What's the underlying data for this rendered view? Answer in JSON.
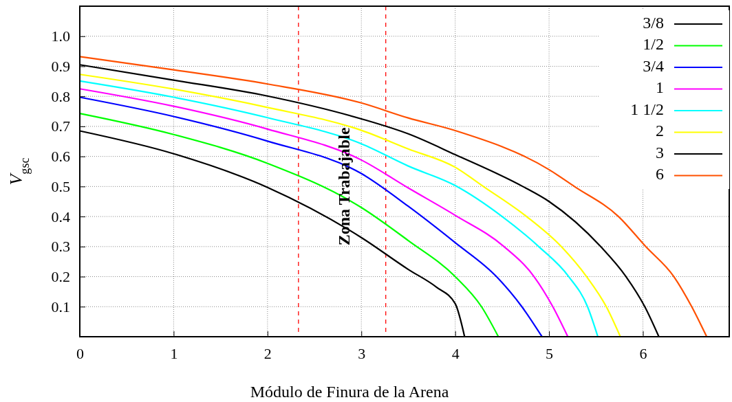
{
  "chart_data": {
    "type": "line",
    "xlabel": "Módulo de Finura de la Arena",
    "ylabel": "V$_{gsc}$",
    "xlim": [
      0,
      6.92
    ],
    "ylim": [
      0,
      1.1
    ],
    "xticks": [
      0,
      1,
      2,
      3,
      4,
      5,
      6
    ],
    "yticks": [
      {
        "value": 0,
        "label": null
      },
      {
        "value": 0.1,
        "label": "0.1"
      },
      {
        "value": 0.2,
        "label": "0.2"
      },
      {
        "value": 0.3,
        "label": "0.3"
      },
      {
        "value": 0.4,
        "label": "0.4"
      },
      {
        "value": 0.5,
        "label": "0.5"
      },
      {
        "value": 0.6,
        "label": "0.6"
      },
      {
        "value": 0.7,
        "label": "0.7"
      },
      {
        "value": 0.8,
        "label": "0.8"
      },
      {
        "value": 0.9,
        "label": "0.9"
      },
      {
        "value": 1.0,
        "label": "1.0"
      }
    ],
    "grid": true,
    "legend": "top right",
    "marker": "none",
    "line_style": "solid",
    "ref_lines": [
      {
        "axis": "x",
        "value": 2.33,
        "color": "#ff0000",
        "line_style": "dashed"
      },
      {
        "axis": "x",
        "value": 3.26,
        "color": "#ff0000",
        "line_style": "dashed"
      }
    ],
    "annotations": [
      "Zona Trabajable"
    ],
    "series": [
      {
        "name": "3/8",
        "color": "#000000",
        "x": [
          0,
          1,
          2,
          3,
          3.5,
          3.8,
          4,
          4.1
        ],
        "values": [
          0.685,
          0.609,
          0.497,
          0.33,
          0.224,
          0.165,
          0.11,
          0
        ]
      },
      {
        "name": "1/2",
        "color": "#00ff00",
        "x": [
          0,
          1,
          2,
          3,
          3.5,
          4,
          4.28,
          4.46
        ],
        "values": [
          0.743,
          0.673,
          0.577,
          0.43,
          0.32,
          0.2,
          0.1,
          0
        ]
      },
      {
        "name": "3/4",
        "color": "#0000ff",
        "x": [
          0,
          1,
          2,
          3,
          3.5,
          4,
          4.44,
          4.71,
          4.925
        ],
        "values": [
          0.797,
          0.733,
          0.651,
          0.543,
          0.434,
          0.313,
          0.2,
          0.1,
          0
        ]
      },
      {
        "name": "1",
        "color": "#ff00ff",
        "x": [
          0,
          1,
          2,
          3,
          3.5,
          4,
          4.52,
          4.84,
          5.04,
          5.2
        ],
        "values": [
          0.825,
          0.767,
          0.691,
          0.588,
          0.495,
          0.404,
          0.3,
          0.2,
          0.1,
          0
        ]
      },
      {
        "name": "1 1/2",
        "color": "#00ffff",
        "x": [
          0,
          1,
          2,
          3,
          3.5,
          4,
          4.5,
          4.89,
          5.21,
          5.41,
          5.52
        ],
        "values": [
          0.851,
          0.797,
          0.729,
          0.642,
          0.568,
          0.503,
          0.4,
          0.3,
          0.2,
          0.1,
          0
        ]
      },
      {
        "name": "2",
        "color": "#ffff00",
        "x": [
          0,
          1,
          2,
          3,
          3.5,
          4,
          4.3,
          4.76,
          5.13,
          5.4,
          5.61,
          5.76
        ],
        "values": [
          0.873,
          0.824,
          0.763,
          0.687,
          0.625,
          0.564,
          0.5,
          0.4,
          0.3,
          0.2,
          0.1,
          0
        ]
      },
      {
        "name": "3",
        "color": "#000000",
        "x": [
          0,
          1,
          2,
          3,
          3.5,
          4,
          4.72,
          5,
          5.55,
          5.82,
          6.02,
          6.17
        ],
        "values": [
          0.905,
          0.854,
          0.801,
          0.725,
          0.675,
          0.606,
          0.5,
          0.45,
          0.3,
          0.2,
          0.1,
          0
        ]
      },
      {
        "name": "6",
        "color": "#ff5000",
        "x": [
          0,
          1,
          2,
          3,
          3.5,
          4,
          5,
          5.27,
          5.74,
          6.03,
          6.33,
          6.52,
          6.68
        ],
        "values": [
          0.932,
          0.888,
          0.841,
          0.778,
          0.728,
          0.686,
          0.556,
          0.5,
          0.4,
          0.3,
          0.2,
          0.1,
          0
        ]
      }
    ]
  }
}
